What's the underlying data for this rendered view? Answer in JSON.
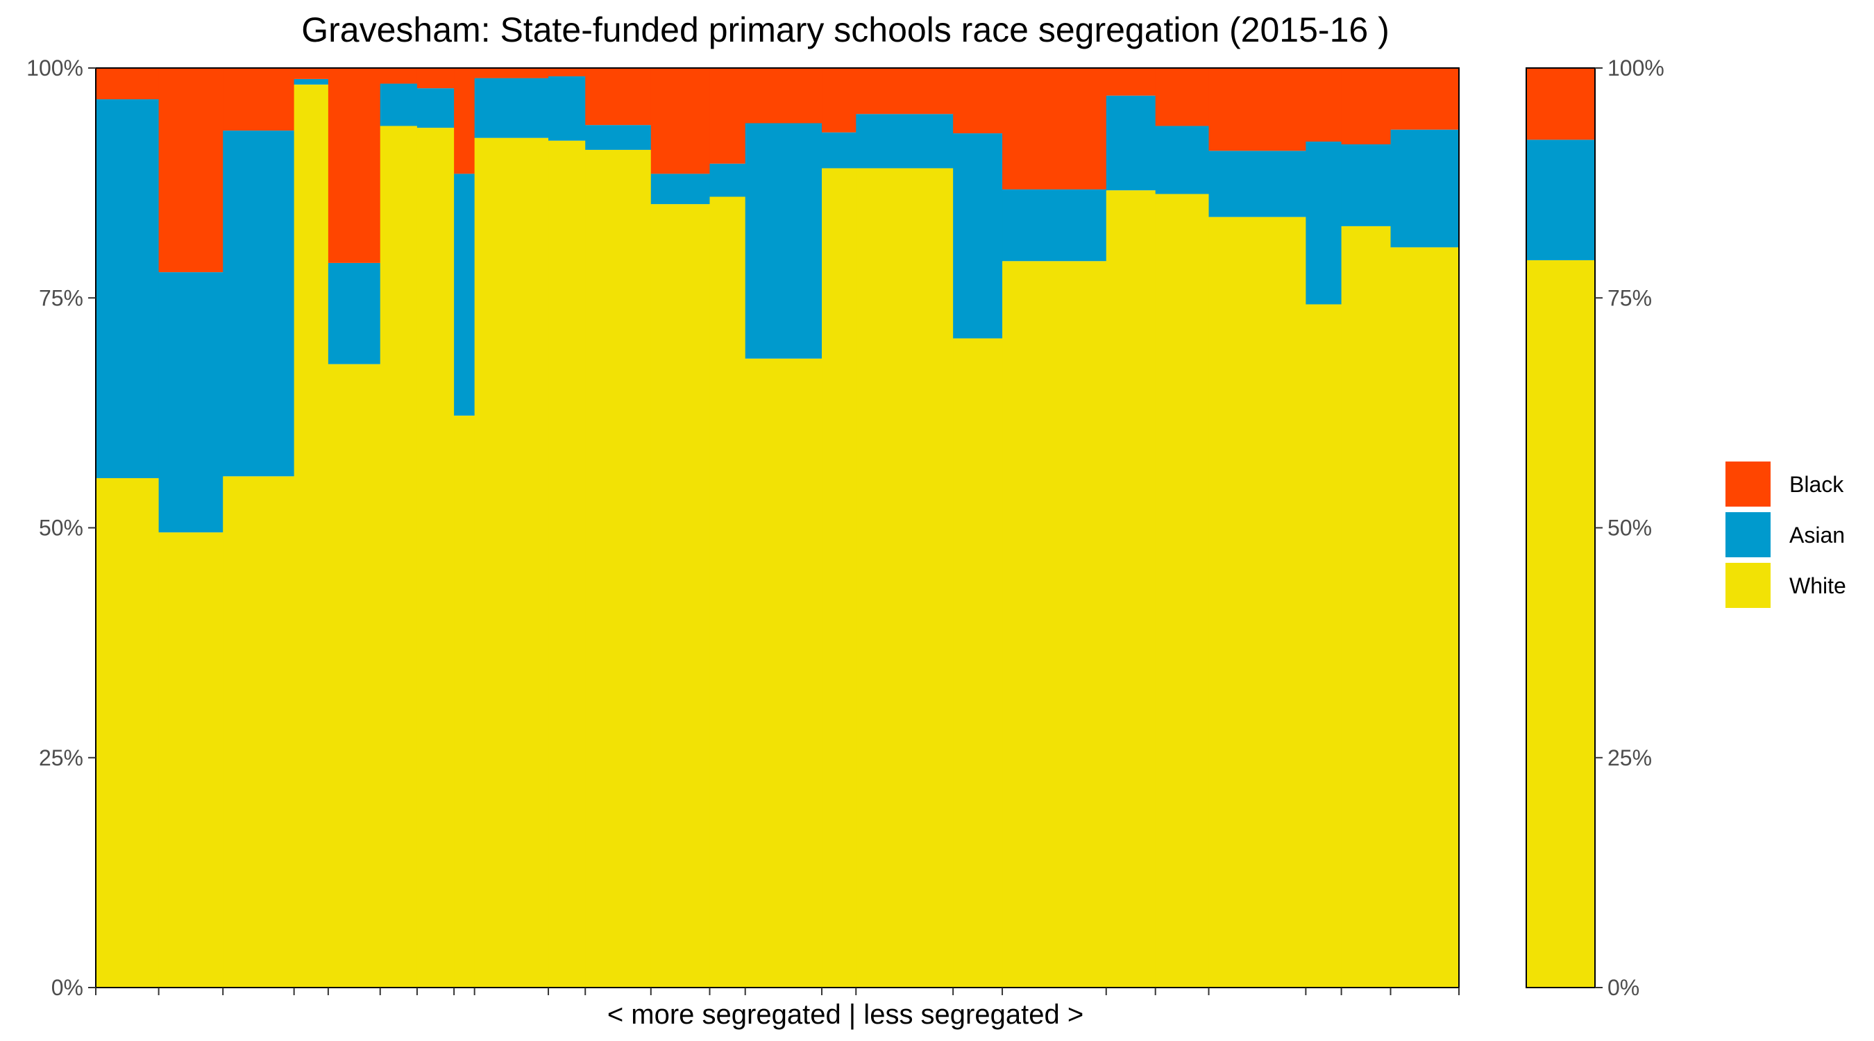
{
  "chart_data": {
    "type": "stacked-bar-variable-width",
    "title": "Gravesham: State-funded primary schools race segregation (2015-16 )",
    "xlabel": "< more segregated | less segregated >",
    "ylabel": "",
    "ylim": [
      0,
      100
    ],
    "y_ticks": [
      "0%",
      "25%",
      "50%",
      "75%",
      "100%"
    ],
    "y_tick_values": [
      0,
      25,
      50,
      75,
      100
    ],
    "legend": [
      {
        "name": "Black",
        "color": "#FF4500"
      },
      {
        "name": "Asian",
        "color": "#009ACD"
      },
      {
        "name": "White",
        "color": "#F2E205"
      }
    ],
    "colors": {
      "Black": "#FF4500",
      "Asian": "#009ACD",
      "White": "#F2E205"
    },
    "schools": [
      {
        "share": 4.6,
        "white": 55.4,
        "asian": 41.2,
        "black": 3.4
      },
      {
        "share": 4.7,
        "white": 49.5,
        "asian": 28.3,
        "black": 22.2
      },
      {
        "share": 5.2,
        "white": 55.6,
        "asian": 37.6,
        "black": 6.8
      },
      {
        "share": 2.5,
        "white": 98.2,
        "asian": 0.6,
        "black": 1.2
      },
      {
        "share": 3.8,
        "white": 67.8,
        "asian": 11.0,
        "black": 21.2
      },
      {
        "share": 2.7,
        "white": 93.7,
        "asian": 4.6,
        "black": 1.7
      },
      {
        "share": 2.7,
        "white": 93.5,
        "asian": 4.3,
        "black": 2.2
      },
      {
        "share": 1.5,
        "white": 62.2,
        "asian": 26.3,
        "black": 11.5
      },
      {
        "share": 5.4,
        "white": 92.4,
        "asian": 6.5,
        "black": 1.1
      },
      {
        "share": 2.7,
        "white": 92.1,
        "asian": 7.0,
        "black": 0.9
      },
      {
        "share": 4.8,
        "white": 91.1,
        "asian": 2.7,
        "black": 6.2
      },
      {
        "share": 4.3,
        "white": 85.2,
        "asian": 3.3,
        "black": 11.5
      },
      {
        "share": 2.6,
        "white": 86.0,
        "asian": 3.6,
        "black": 10.4
      },
      {
        "share": 5.6,
        "white": 68.4,
        "asian": 25.6,
        "black": 6.0
      },
      {
        "share": 2.5,
        "white": 89.1,
        "asian": 3.9,
        "black": 7.0
      },
      {
        "share": 7.1,
        "white": 89.1,
        "asian": 5.9,
        "black": 5.0
      },
      {
        "share": 3.6,
        "white": 70.6,
        "asian": 22.3,
        "black": 7.1
      },
      {
        "share": 7.6,
        "white": 79.0,
        "asian": 7.8,
        "black": 13.2
      },
      {
        "share": 3.6,
        "white": 86.7,
        "asian": 10.3,
        "black": 3.0
      },
      {
        "share": 3.9,
        "white": 86.3,
        "asian": 7.4,
        "black": 6.3
      },
      {
        "share": 7.1,
        "white": 83.8,
        "asian": 7.2,
        "black": 9.0
      },
      {
        "share": 2.6,
        "white": 74.3,
        "asian": 17.7,
        "black": 8.0
      },
      {
        "share": 3.6,
        "white": 82.8,
        "asian": 8.9,
        "black": 8.3
      },
      {
        "share": 5.0,
        "white": 80.5,
        "asian": 12.8,
        "black": 6.7
      }
    ],
    "overall": {
      "white": 79.1,
      "asian": 13.1,
      "black": 7.8
    }
  }
}
